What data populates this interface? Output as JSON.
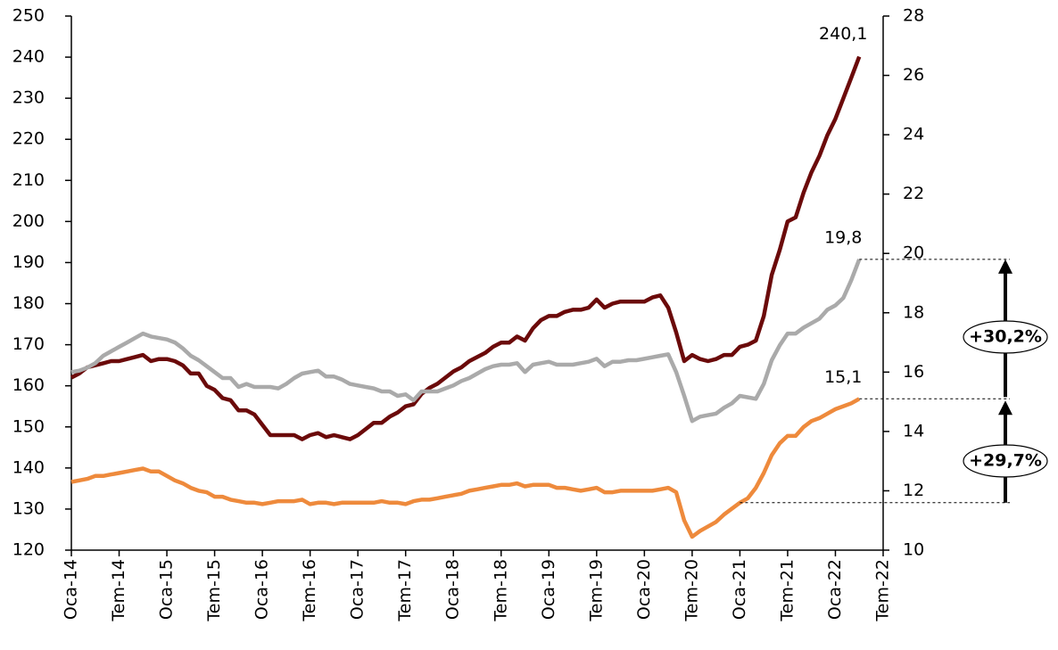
{
  "chart_data": {
    "type": "line",
    "categories": [
      "Oca-14",
      null,
      null,
      null,
      null,
      null,
      "Tem-14",
      null,
      null,
      null,
      null,
      null,
      "Oca-15",
      null,
      null,
      null,
      null,
      null,
      "Tem-15",
      null,
      null,
      null,
      null,
      null,
      "Oca-16",
      null,
      null,
      null,
      null,
      null,
      "Tem-16",
      null,
      null,
      null,
      null,
      null,
      "Oca-17",
      null,
      null,
      null,
      null,
      null,
      "Tem-17",
      null,
      null,
      null,
      null,
      null,
      "Oca-18",
      null,
      null,
      null,
      null,
      null,
      "Tem-18",
      null,
      null,
      null,
      null,
      null,
      "Oca-19",
      null,
      null,
      null,
      null,
      null,
      "Tem-19",
      null,
      null,
      null,
      null,
      null,
      "Oca-20",
      null,
      null,
      null,
      null,
      null,
      "Tem-20",
      null,
      null,
      null,
      null,
      null,
      "Oca-21",
      null,
      null,
      null,
      null,
      null,
      "Tem-21",
      null,
      null,
      null,
      null,
      null,
      "Oca-22",
      null,
      null,
      null,
      null,
      null,
      "Tem-22"
    ],
    "series": [
      {
        "color": "#6b0a0a",
        "values": [
          162,
          163,
          164.5,
          165,
          165.5,
          166,
          166,
          166.5,
          167,
          167.5,
          166,
          166.5,
          166.5,
          166,
          165,
          163,
          163,
          160,
          159,
          157,
          156.5,
          154,
          154,
          153,
          150.5,
          148,
          148,
          148,
          148,
          147,
          148,
          148.5,
          147.5,
          148,
          147.5,
          147,
          148,
          149.5,
          151,
          151,
          152.5,
          153.5,
          155,
          155.5,
          158,
          159.5,
          160.5,
          162,
          163.5,
          164.5,
          166,
          167,
          168,
          169.5,
          170.5,
          170.5,
          172,
          171,
          174,
          176,
          177,
          177,
          178,
          178.5,
          178.5,
          179,
          181,
          179,
          180,
          180.5,
          180.5,
          180.5,
          180.5,
          181.5,
          182,
          179,
          173,
          166,
          167.5,
          166.5,
          166,
          166.5,
          167.5,
          167.5,
          169.5,
          170,
          171,
          177,
          187,
          193,
          200,
          201,
          207,
          212,
          216,
          221,
          225,
          230,
          235,
          240.1,
          null,
          null,
          null
        ],
        "value_labels": [
          null,
          null,
          null,
          null,
          null,
          null,
          null,
          null,
          null,
          null,
          null,
          null,
          null,
          null,
          null,
          null,
          null,
          null,
          null,
          null,
          null,
          null,
          null,
          null,
          null,
          null,
          null,
          null,
          null,
          null,
          null,
          null,
          null,
          null,
          null,
          null,
          null,
          null,
          null,
          null,
          null,
          null,
          null,
          null,
          null,
          null,
          null,
          null,
          null,
          null,
          null,
          null,
          null,
          null,
          null,
          null,
          null,
          null,
          null,
          null,
          null,
          null,
          null,
          null,
          null,
          null,
          null,
          null,
          null,
          null,
          null,
          null,
          null,
          null,
          null,
          null,
          null,
          null,
          null,
          null,
          null,
          null,
          null,
          null,
          null,
          null,
          null,
          null,
          null,
          null,
          null,
          null,
          null,
          null,
          null,
          null,
          null,
          null,
          null,
          "240,1",
          null,
          null,
          null
        ]
      },
      {
        "color": "#aaaaaa",
        "axis": "y2",
        "values": [
          16.0,
          16.05,
          16.15,
          16.3,
          16.55,
          16.7,
          16.85,
          17.0,
          17.15,
          17.3,
          17.2,
          17.15,
          17.1,
          17.0,
          16.8,
          16.55,
          16.4,
          16.2,
          16.0,
          15.8,
          15.8,
          15.5,
          15.6,
          15.5,
          15.5,
          15.5,
          15.45,
          15.6,
          15.8,
          15.95,
          16.0,
          16.05,
          15.85,
          15.85,
          15.75,
          15.6,
          15.55,
          15.5,
          15.45,
          15.35,
          15.35,
          15.2,
          15.25,
          15.05,
          15.35,
          15.35,
          15.35,
          15.45,
          15.55,
          15.7,
          15.8,
          15.95,
          16.1,
          16.2,
          16.25,
          16.25,
          16.3,
          16.0,
          16.25,
          16.3,
          16.35,
          16.25,
          16.25,
          16.25,
          16.3,
          16.35,
          16.45,
          16.2,
          16.35,
          16.35,
          16.4,
          16.4,
          16.45,
          16.5,
          16.55,
          16.6,
          16.0,
          15.2,
          14.35,
          14.5,
          14.55,
          14.6,
          14.8,
          14.95,
          15.2,
          15.15,
          15.1,
          15.6,
          16.4,
          16.9,
          17.3,
          17.3,
          17.5,
          17.65,
          17.8,
          18.1,
          18.25,
          18.5,
          19.1,
          19.8,
          null,
          null,
          null
        ],
        "value_labels": [
          null,
          null,
          null,
          null,
          null,
          null,
          null,
          null,
          null,
          null,
          null,
          null,
          null,
          null,
          null,
          null,
          null,
          null,
          null,
          null,
          null,
          null,
          null,
          null,
          null,
          null,
          null,
          null,
          null,
          null,
          null,
          null,
          null,
          null,
          null,
          null,
          null,
          null,
          null,
          null,
          null,
          null,
          null,
          null,
          null,
          null,
          null,
          null,
          null,
          null,
          null,
          null,
          null,
          null,
          null,
          null,
          null,
          null,
          null,
          null,
          null,
          null,
          null,
          null,
          null,
          null,
          null,
          null,
          null,
          null,
          null,
          null,
          null,
          null,
          null,
          null,
          null,
          null,
          null,
          null,
          null,
          null,
          null,
          null,
          null,
          null,
          null,
          null,
          null,
          null,
          null,
          null,
          null,
          null,
          null,
          null,
          null,
          null,
          null,
          "19,8",
          null,
          null,
          null
        ]
      },
      {
        "color": "#ee8a3c",
        "axis": "y2",
        "values": [
          12.3,
          12.35,
          12.4,
          12.5,
          12.5,
          12.55,
          12.6,
          12.65,
          12.7,
          12.75,
          12.65,
          12.65,
          12.5,
          12.35,
          12.25,
          12.1,
          12.0,
          11.95,
          11.8,
          11.8,
          11.7,
          11.65,
          11.6,
          11.6,
          11.55,
          11.6,
          11.65,
          11.65,
          11.65,
          11.7,
          11.55,
          11.6,
          11.6,
          11.55,
          11.6,
          11.6,
          11.6,
          11.6,
          11.6,
          11.65,
          11.6,
          11.6,
          11.55,
          11.65,
          11.7,
          11.7,
          11.75,
          11.8,
          11.85,
          11.9,
          12.0,
          12.05,
          12.1,
          12.15,
          12.2,
          12.2,
          12.25,
          12.15,
          12.2,
          12.2,
          12.2,
          12.1,
          12.1,
          12.05,
          12.0,
          12.05,
          12.1,
          11.95,
          11.95,
          12.0,
          12.0,
          12.0,
          12.0,
          12.0,
          12.05,
          12.1,
          11.95,
          11.0,
          10.45,
          10.65,
          10.8,
          10.95,
          11.2,
          11.4,
          11.6,
          11.75,
          12.1,
          12.6,
          13.2,
          13.6,
          13.85,
          13.85,
          14.15,
          14.35,
          14.45,
          14.6,
          14.75,
          14.85,
          14.95,
          15.1,
          null,
          null,
          null
        ],
        "value_labels": [
          null,
          null,
          null,
          null,
          null,
          null,
          null,
          null,
          null,
          null,
          null,
          null,
          null,
          null,
          null,
          null,
          null,
          null,
          null,
          null,
          null,
          null,
          null,
          null,
          null,
          null,
          null,
          null,
          null,
          null,
          null,
          null,
          null,
          null,
          null,
          null,
          null,
          null,
          null,
          null,
          null,
          null,
          null,
          null,
          null,
          null,
          null,
          null,
          null,
          null,
          null,
          null,
          null,
          null,
          null,
          null,
          null,
          null,
          null,
          null,
          null,
          null,
          null,
          null,
          null,
          null,
          null,
          null,
          null,
          null,
          null,
          null,
          null,
          null,
          null,
          null,
          null,
          null,
          null,
          null,
          null,
          null,
          null,
          null,
          null,
          null,
          null,
          null,
          null,
          null,
          null,
          null,
          null,
          null,
          null,
          null,
          null,
          null,
          null,
          "15,1",
          null,
          null,
          null
        ]
      }
    ],
    "ylim": [
      120,
      250
    ],
    "yticks": [
      120,
      130,
      140,
      150,
      160,
      170,
      180,
      190,
      200,
      210,
      220,
      230,
      240,
      250
    ],
    "y2lim": [
      10,
      28
    ],
    "y2ticks": [
      10,
      12,
      14,
      16,
      18,
      20,
      22,
      24,
      26,
      28
    ],
    "annotations": [
      {
        "text": "+30,2%"
      },
      {
        "text": "+29,7%"
      }
    ]
  }
}
